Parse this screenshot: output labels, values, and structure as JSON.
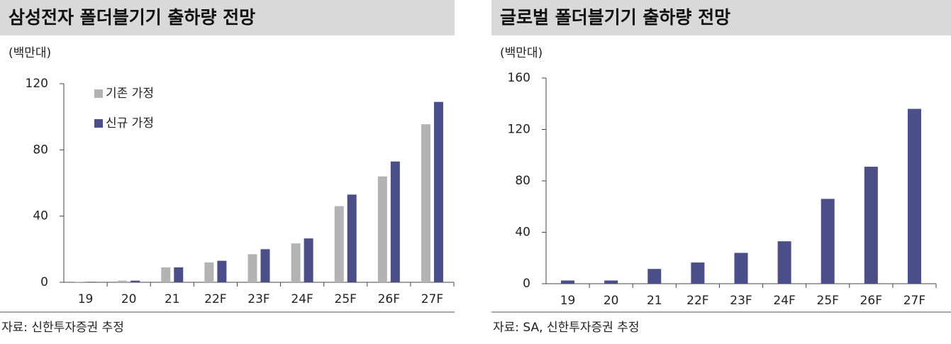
{
  "chart_data": [
    {
      "type": "bar",
      "title": "삼성전자 폴더블기기 출하량 전망",
      "unit": "(백만대)",
      "source": "자료: 신한투자증권 추정",
      "categories": [
        "19",
        "20",
        "21",
        "22F",
        "23F",
        "24F",
        "25F",
        "26F",
        "27F"
      ],
      "series": [
        {
          "name": "기존 가정",
          "color": "#b3b3b3",
          "values": [
            0.3,
            1,
            9,
            12,
            17,
            23.5,
            46,
            64,
            95.5
          ]
        },
        {
          "name": "신규 가정",
          "color": "#4a4f8a",
          "values": [
            0.3,
            1,
            9,
            13,
            20,
            26.5,
            53,
            73,
            109
          ]
        }
      ],
      "ylim": [
        0,
        120
      ],
      "yticks": [
        0,
        40,
        80,
        120
      ],
      "legend": "upper left"
    },
    {
      "type": "bar",
      "title": "글로벌 폴더블기기 출하량 전망",
      "unit": "(백만대)",
      "source": "자료: SA, 신한투자증권 추정",
      "categories": [
        "19",
        "20",
        "21",
        "22F",
        "23F",
        "24F",
        "25F",
        "26F",
        "27F"
      ],
      "series": [
        {
          "color": "#4a4f8a",
          "values": [
            2.5,
            2.5,
            11.5,
            16.5,
            24,
            33,
            66,
            91,
            136
          ]
        }
      ],
      "ylim": [
        0,
        160
      ],
      "yticks": [
        0,
        40,
        80,
        120,
        160
      ]
    }
  ]
}
